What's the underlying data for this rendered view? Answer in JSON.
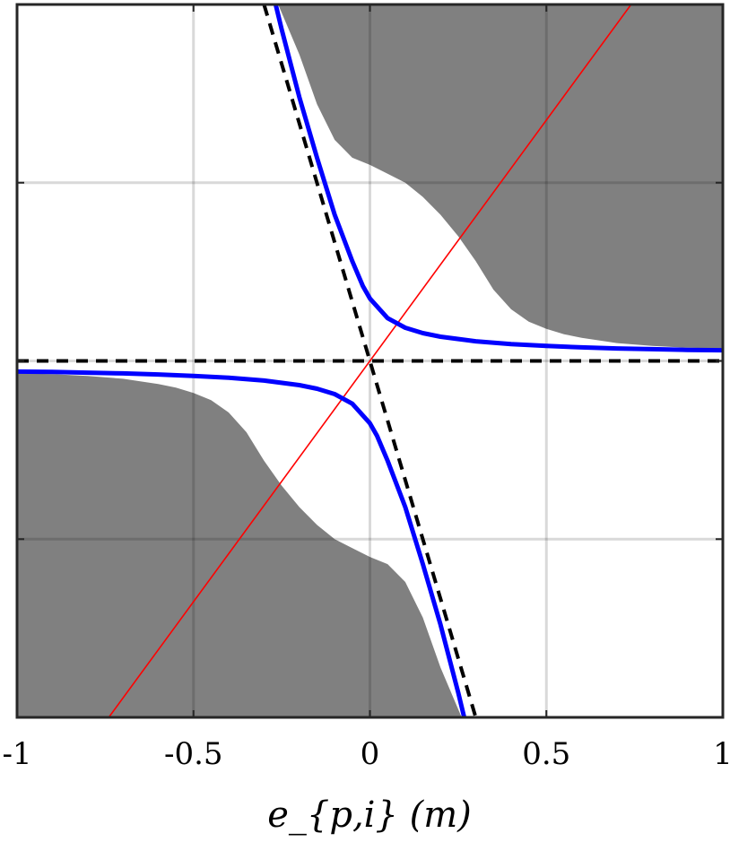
{
  "chart_data": {
    "type": "line",
    "title": "",
    "xlabel": "e_{p,i} (m)",
    "ylabel": "",
    "xlim": [
      -1,
      1
    ],
    "ylim": [
      -1,
      1
    ],
    "grid": true,
    "x_ticks": [
      -1,
      -0.5,
      0,
      0.5,
      1
    ],
    "x_tick_labels": [
      "-1",
      "-0.5",
      "0",
      "0.5",
      "1"
    ],
    "y_ticks": [
      -1,
      -0.5,
      0,
      0.5,
      1
    ],
    "y_tick_labels": [
      "",
      "",
      "",
      "",
      ""
    ],
    "colors": {
      "shaded_region": "#808080",
      "blue_curve": "#0000ff",
      "red_line": "#ff0000",
      "dashed_line": "#000000",
      "grid": "#d9d9d9"
    },
    "series": [
      {
        "style": "blue-solid",
        "x": [
          0.267,
          0.25,
          0.2,
          0.15,
          0.1,
          0.05,
          0.02,
          0.0,
          -0.05,
          -0.1,
          -0.15,
          -0.2,
          -0.3,
          -0.4,
          -0.5,
          -0.6,
          -0.7,
          -0.8,
          -0.9,
          -1.0
        ],
        "y": [
          -1.0,
          -0.93,
          -0.74,
          -0.57,
          -0.41,
          -0.28,
          -0.21,
          -0.175,
          -0.12,
          -0.093,
          -0.078,
          -0.068,
          -0.055,
          -0.047,
          -0.042,
          -0.038,
          -0.035,
          -0.033,
          -0.031,
          -0.03
        ]
      },
      {
        "style": "blue-solid",
        "x": [
          -0.267,
          -0.25,
          -0.2,
          -0.15,
          -0.1,
          -0.05,
          -0.02,
          0.0,
          0.05,
          0.1,
          0.15,
          0.2,
          0.3,
          0.4,
          0.5,
          0.6,
          0.7,
          0.8,
          0.9,
          1.0
        ],
        "y": [
          1.0,
          0.93,
          0.74,
          0.57,
          0.41,
          0.28,
          0.21,
          0.175,
          0.12,
          0.093,
          0.078,
          0.068,
          0.055,
          0.047,
          0.042,
          0.038,
          0.035,
          0.033,
          0.031,
          0.03
        ]
      },
      {
        "style": "red-solid",
        "x": [
          -0.74,
          0.74
        ],
        "y": [
          -1.0,
          1.0
        ]
      },
      {
        "style": "black-dashed",
        "x": [
          -0.3,
          0.3
        ],
        "y": [
          1.0,
          -1.0
        ]
      },
      {
        "style": "black-dashed",
        "x": [
          -1.0,
          1.0
        ],
        "y": [
          0.0,
          0.0
        ]
      }
    ],
    "shaded_regions": [
      {
        "boundary_x": [
          -0.26,
          -0.2,
          -0.15,
          -0.1,
          -0.05,
          0.0,
          0.05,
          0.1,
          0.15,
          0.2,
          0.25,
          0.3,
          0.35,
          0.4,
          0.45,
          0.5,
          0.55,
          0.6,
          0.7,
          0.8,
          0.9,
          1.0
        ],
        "boundary_y": [
          1.0,
          0.86,
          0.72,
          0.62,
          0.57,
          0.55,
          0.525,
          0.5,
          0.46,
          0.41,
          0.35,
          0.28,
          0.2,
          0.145,
          0.11,
          0.09,
          0.075,
          0.065,
          0.05,
          0.042,
          0.037,
          0.035
        ],
        "fill_side": "above"
      },
      {
        "boundary_x": [
          0.26,
          0.2,
          0.15,
          0.1,
          0.05,
          0.0,
          -0.05,
          -0.1,
          -0.15,
          -0.2,
          -0.25,
          -0.3,
          -0.35,
          -0.4,
          -0.45,
          -0.5,
          -0.55,
          -0.6,
          -0.7,
          -0.8,
          -0.9,
          -1.0
        ],
        "boundary_y": [
          -1.0,
          -0.86,
          -0.72,
          -0.62,
          -0.57,
          -0.55,
          -0.525,
          -0.5,
          -0.46,
          -0.41,
          -0.35,
          -0.28,
          -0.2,
          -0.145,
          -0.11,
          -0.09,
          -0.075,
          -0.065,
          -0.05,
          -0.042,
          -0.037,
          -0.035
        ],
        "fill_side": "below"
      }
    ]
  }
}
